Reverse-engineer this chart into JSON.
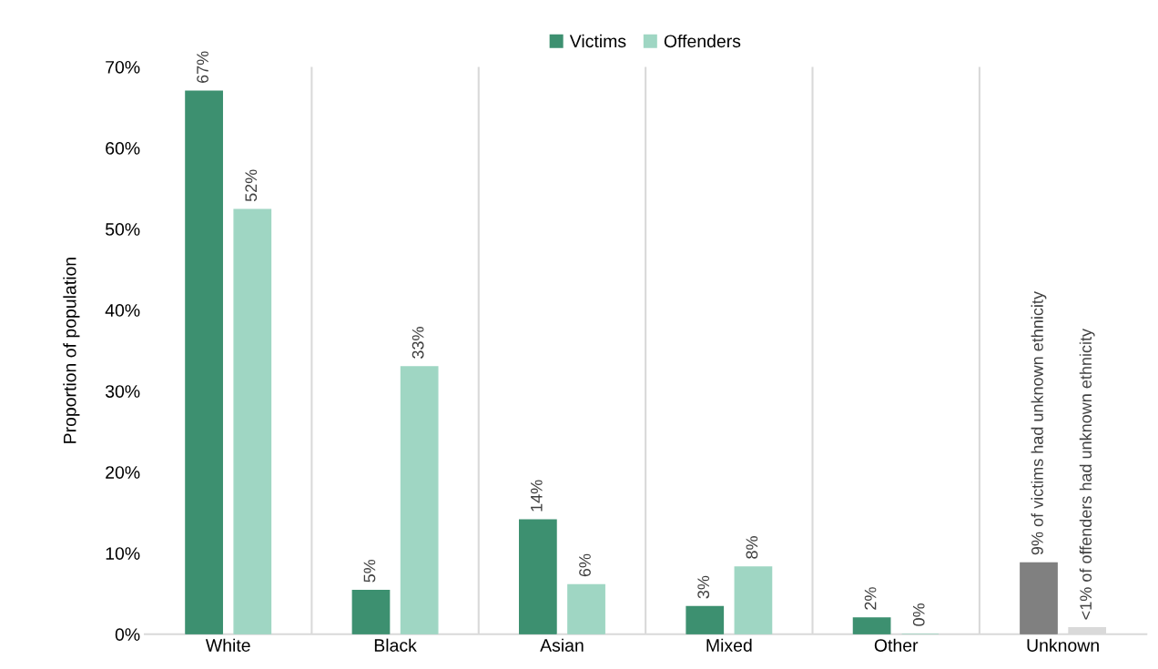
{
  "chart_data": {
    "type": "bar",
    "ylabel": "Proportion of population",
    "categories": [
      "White",
      "Black",
      "Asian",
      "Mixed",
      "Other",
      "Unknown"
    ],
    "series": [
      {
        "name": "Victims",
        "color": "#3d9070",
        "colors": [
          "#3d9070",
          "#3d9070",
          "#3d9070",
          "#3d9070",
          "#3d9070",
          "#808080"
        ],
        "values": [
          67.0,
          5.4,
          14.1,
          3.4,
          2.0,
          8.8
        ],
        "value_labels": [
          "67%",
          "5%",
          "14%",
          "3%",
          "2%",
          "9% of victims had unknown ethnicity"
        ]
      },
      {
        "name": "Offenders",
        "color": "#9fd6c3",
        "colors": [
          "#9fd6c3",
          "#9fd6c3",
          "#9fd6c3",
          "#9fd6c3",
          "#9fd6c3",
          "#d9d9d9"
        ],
        "values": [
          52.4,
          33.0,
          6.1,
          8.3,
          0,
          0.8
        ],
        "value_labels": [
          "52%",
          "33%",
          "6%",
          "8%",
          "0%",
          "<1% of offenders had unknown ethnicity"
        ]
      }
    ],
    "ylim": [
      0,
      70
    ],
    "yticks": [
      {
        "value": 0,
        "label": "0%"
      },
      {
        "value": 10,
        "label": "10%"
      },
      {
        "value": 20,
        "label": "20%"
      },
      {
        "value": 30,
        "label": "30%"
      },
      {
        "value": 40,
        "label": "40%"
      },
      {
        "value": 50,
        "label": "50%"
      },
      {
        "value": 60,
        "label": "60%"
      },
      {
        "value": 70,
        "label": "70%"
      }
    ],
    "grid": "x",
    "legend": "top"
  }
}
